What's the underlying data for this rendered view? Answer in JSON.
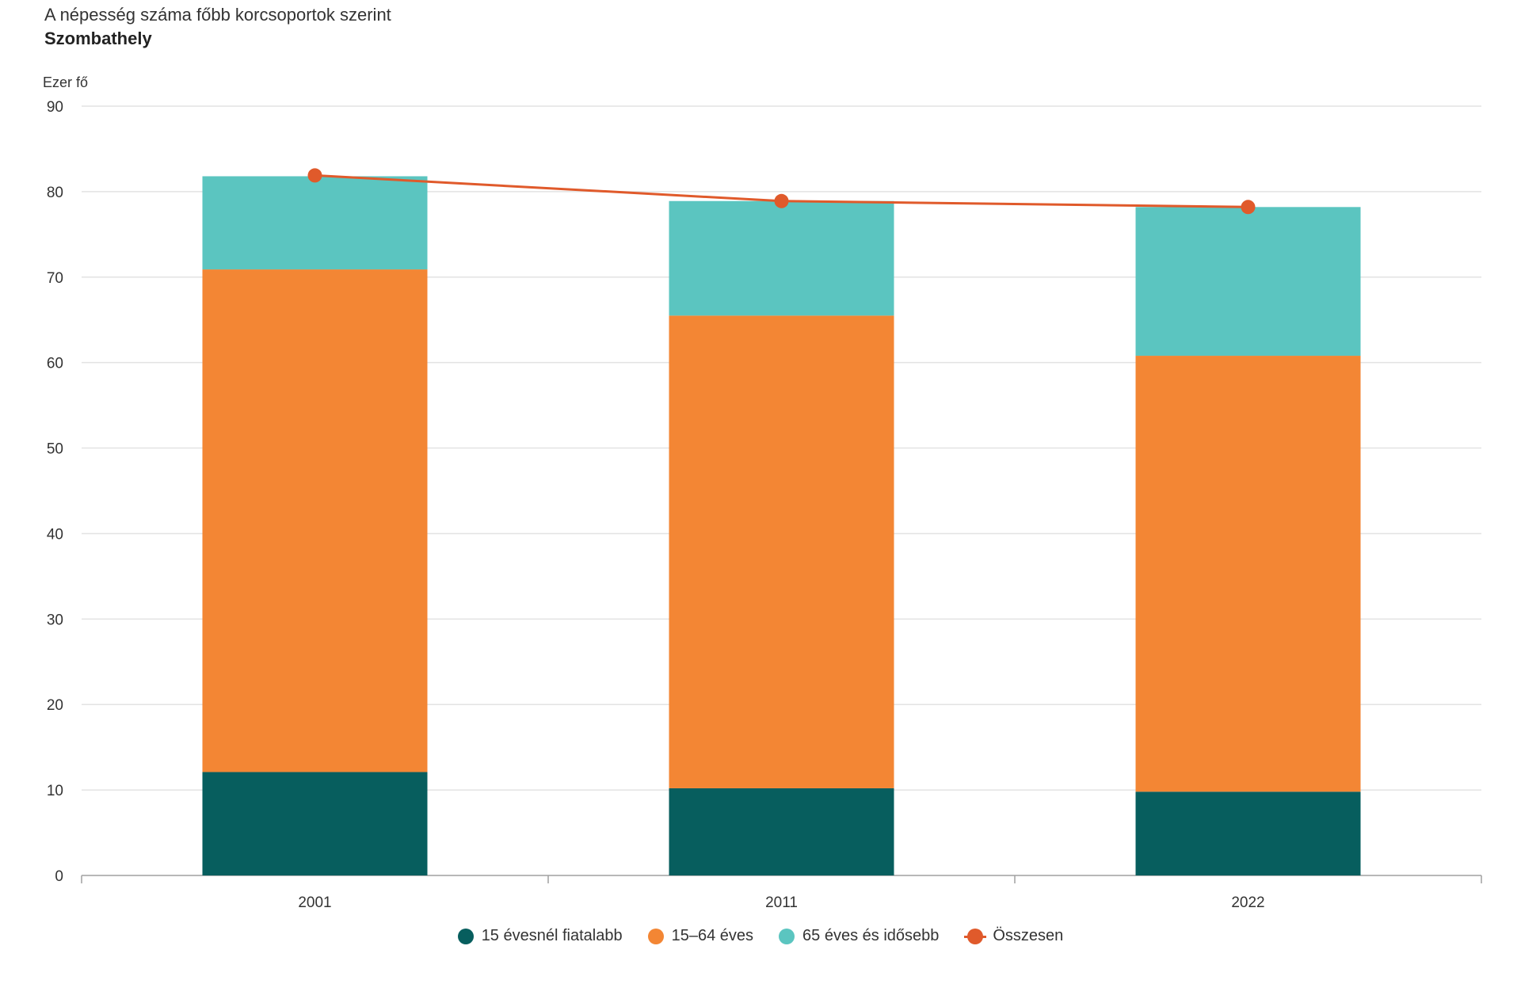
{
  "chart_data": {
    "type": "bar",
    "stacked": true,
    "title": "A népesség száma főbb korcsoportok szerint",
    "subtitle": "Szombathely",
    "ylabel": "Ezer fő",
    "ylim": [
      0,
      90
    ],
    "yticks": [
      0,
      10,
      20,
      30,
      40,
      50,
      60,
      70,
      80,
      90
    ],
    "categories": [
      "2001",
      "2011",
      "2022"
    ],
    "series": [
      {
        "name": "15 évesnél fiatalabb",
        "color": "#075e5e",
        "values": [
          12.1,
          10.2,
          9.8
        ]
      },
      {
        "name": "15–64 éves",
        "color": "#f38634",
        "values": [
          58.8,
          55.3,
          51.0
        ]
      },
      {
        "name": "65 éves és idősebb",
        "color": "#5bc5c0",
        "values": [
          10.9,
          13.4,
          17.4
        ]
      }
    ],
    "line": {
      "name": "Összesen",
      "color": "#e05a2b",
      "values": [
        81.9,
        78.9,
        78.2
      ]
    },
    "grid": true,
    "legend_position": "bottom"
  }
}
